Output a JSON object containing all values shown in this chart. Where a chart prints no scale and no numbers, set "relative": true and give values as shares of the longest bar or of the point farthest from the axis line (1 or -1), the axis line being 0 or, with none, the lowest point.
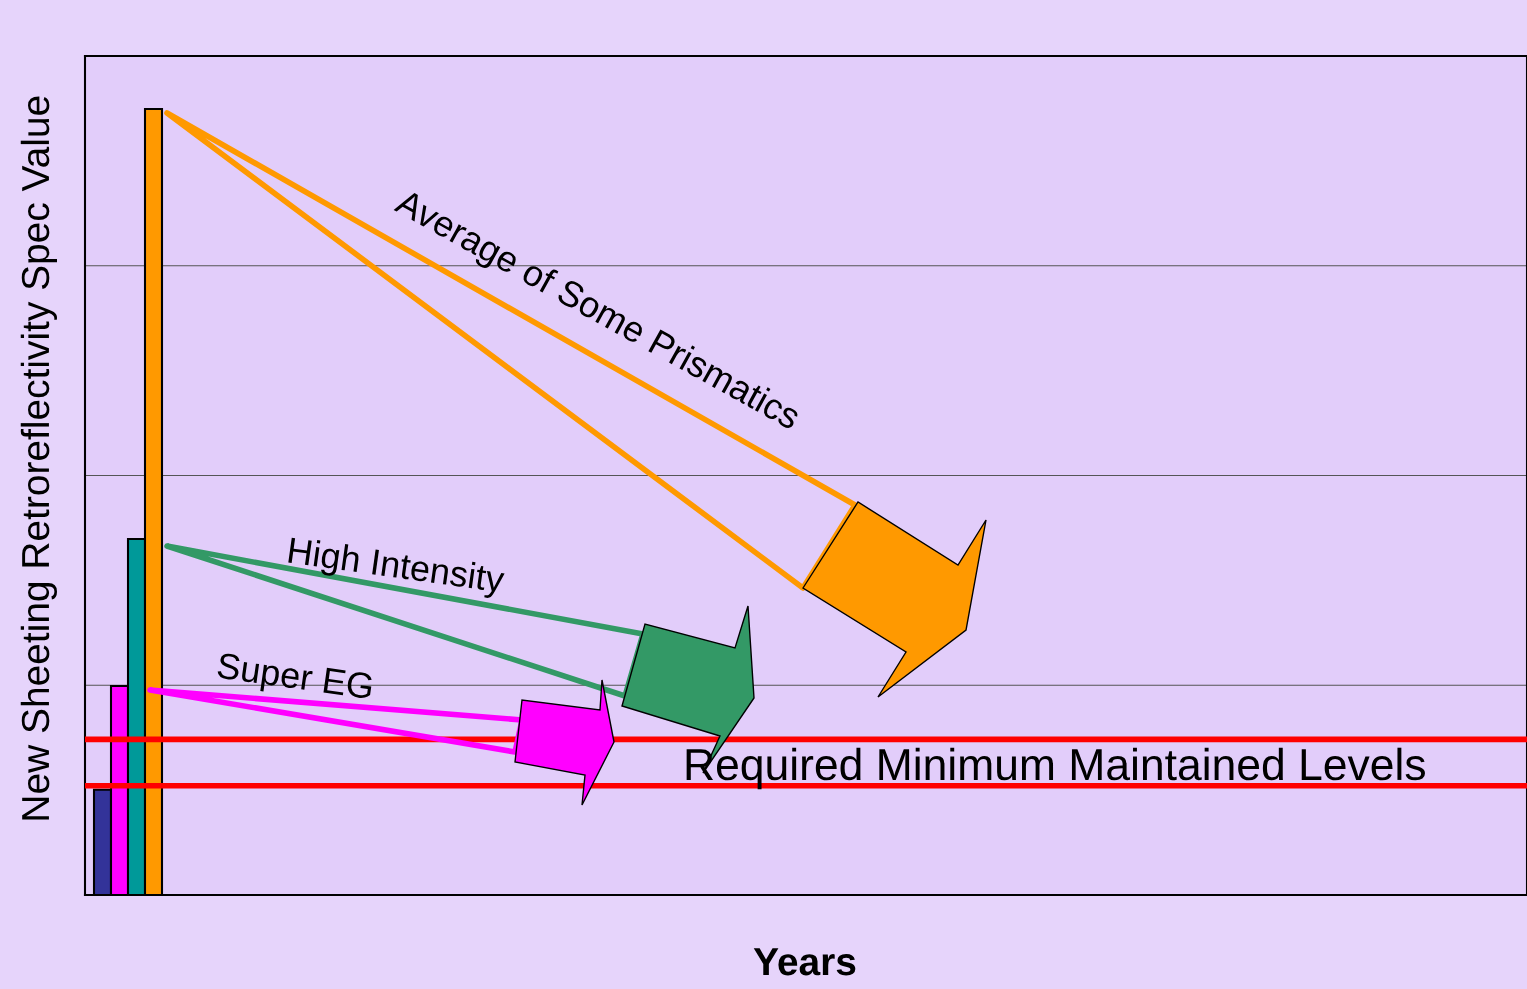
{
  "chart_data": {
    "type": "bar",
    "relative": true,
    "categories": [
      null,
      null,
      null,
      null
    ],
    "values": [
      0.134,
      0.266,
      0.453,
      1
    ],
    "colors": [
      "#333399",
      "#ff00ff",
      "#009999",
      "#ff9900"
    ],
    "ylabel": "New Sheeting Retroreflectivity Spec Value",
    "grid": "y",
    "ref_lines": [
      {
        "axis": "y",
        "value": 0.198,
        "label": "Required Minimum Maintained Levels",
        "color": "#ff0000"
      },
      {
        "axis": "y",
        "value": 0.139,
        "color": "#ff0000"
      }
    ],
    "annotations": [
      "Average of Some Prismatics",
      "High Intensity",
      "Super EG",
      "Years"
    ]
  }
}
